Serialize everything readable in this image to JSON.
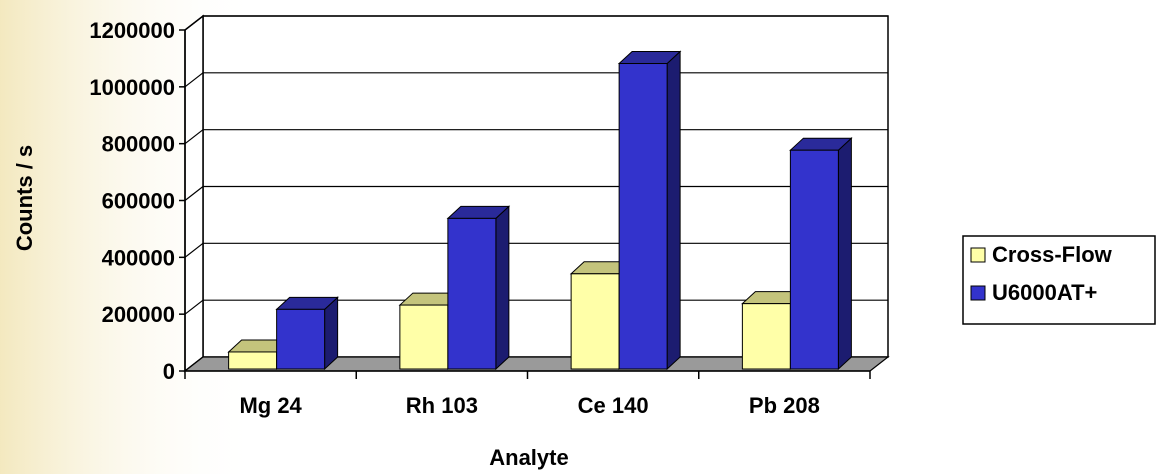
{
  "chart_data": {
    "type": "bar",
    "categories": [
      "Mg 24",
      "Rh 103",
      "Ce 140",
      "Pb 208"
    ],
    "series": [
      {
        "name": "Cross-Flow",
        "values": [
          60000,
          225000,
          335000,
          230000
        ]
      },
      {
        "name": "U6000AT+",
        "values": [
          210000,
          530000,
          1075000,
          770000
        ]
      }
    ],
    "xlabel": "Analyte",
    "ylabel": "Counts / s",
    "ylim": [
      0,
      1200000
    ],
    "yticks": [
      0,
      200000,
      400000,
      600000,
      800000,
      1000000,
      1200000
    ],
    "grid": true,
    "legend_position": "right",
    "colors": {
      "Cross-Flow": {
        "front": "#ffffa8",
        "side": "#a8a860",
        "top": "#c4c47c"
      },
      "U6000AT+": {
        "front": "#3333cc",
        "side": "#1c1c70",
        "top": "#2a2a9a"
      },
      "floor": "#9a9a9a",
      "background": "#ffffff"
    }
  }
}
